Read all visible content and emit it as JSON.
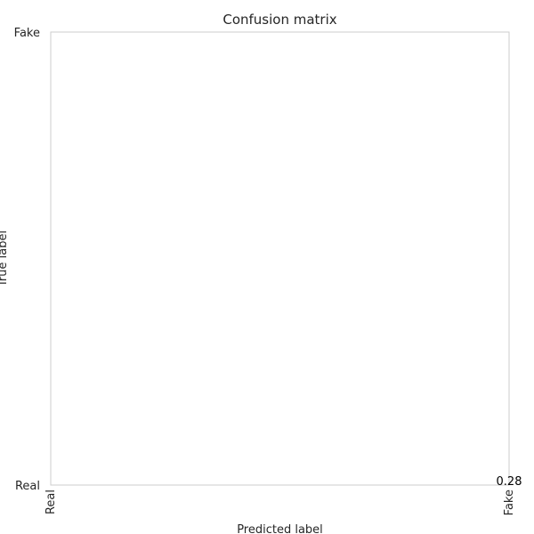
{
  "chart_data": {
    "type": "heatmap",
    "title": "Confusion matrix",
    "xlabel": "Predicted label",
    "ylabel": "True label",
    "x_categories": [
      "Real",
      "Fake"
    ],
    "y_categories": [
      "Real",
      "Fake"
    ],
    "annotations": [
      {
        "x": "Fake",
        "y": "Real",
        "value": "0.28"
      }
    ],
    "grid": false,
    "frame_color": "#cccccc",
    "background_color": "#ffffff",
    "text_color": "#262626"
  }
}
